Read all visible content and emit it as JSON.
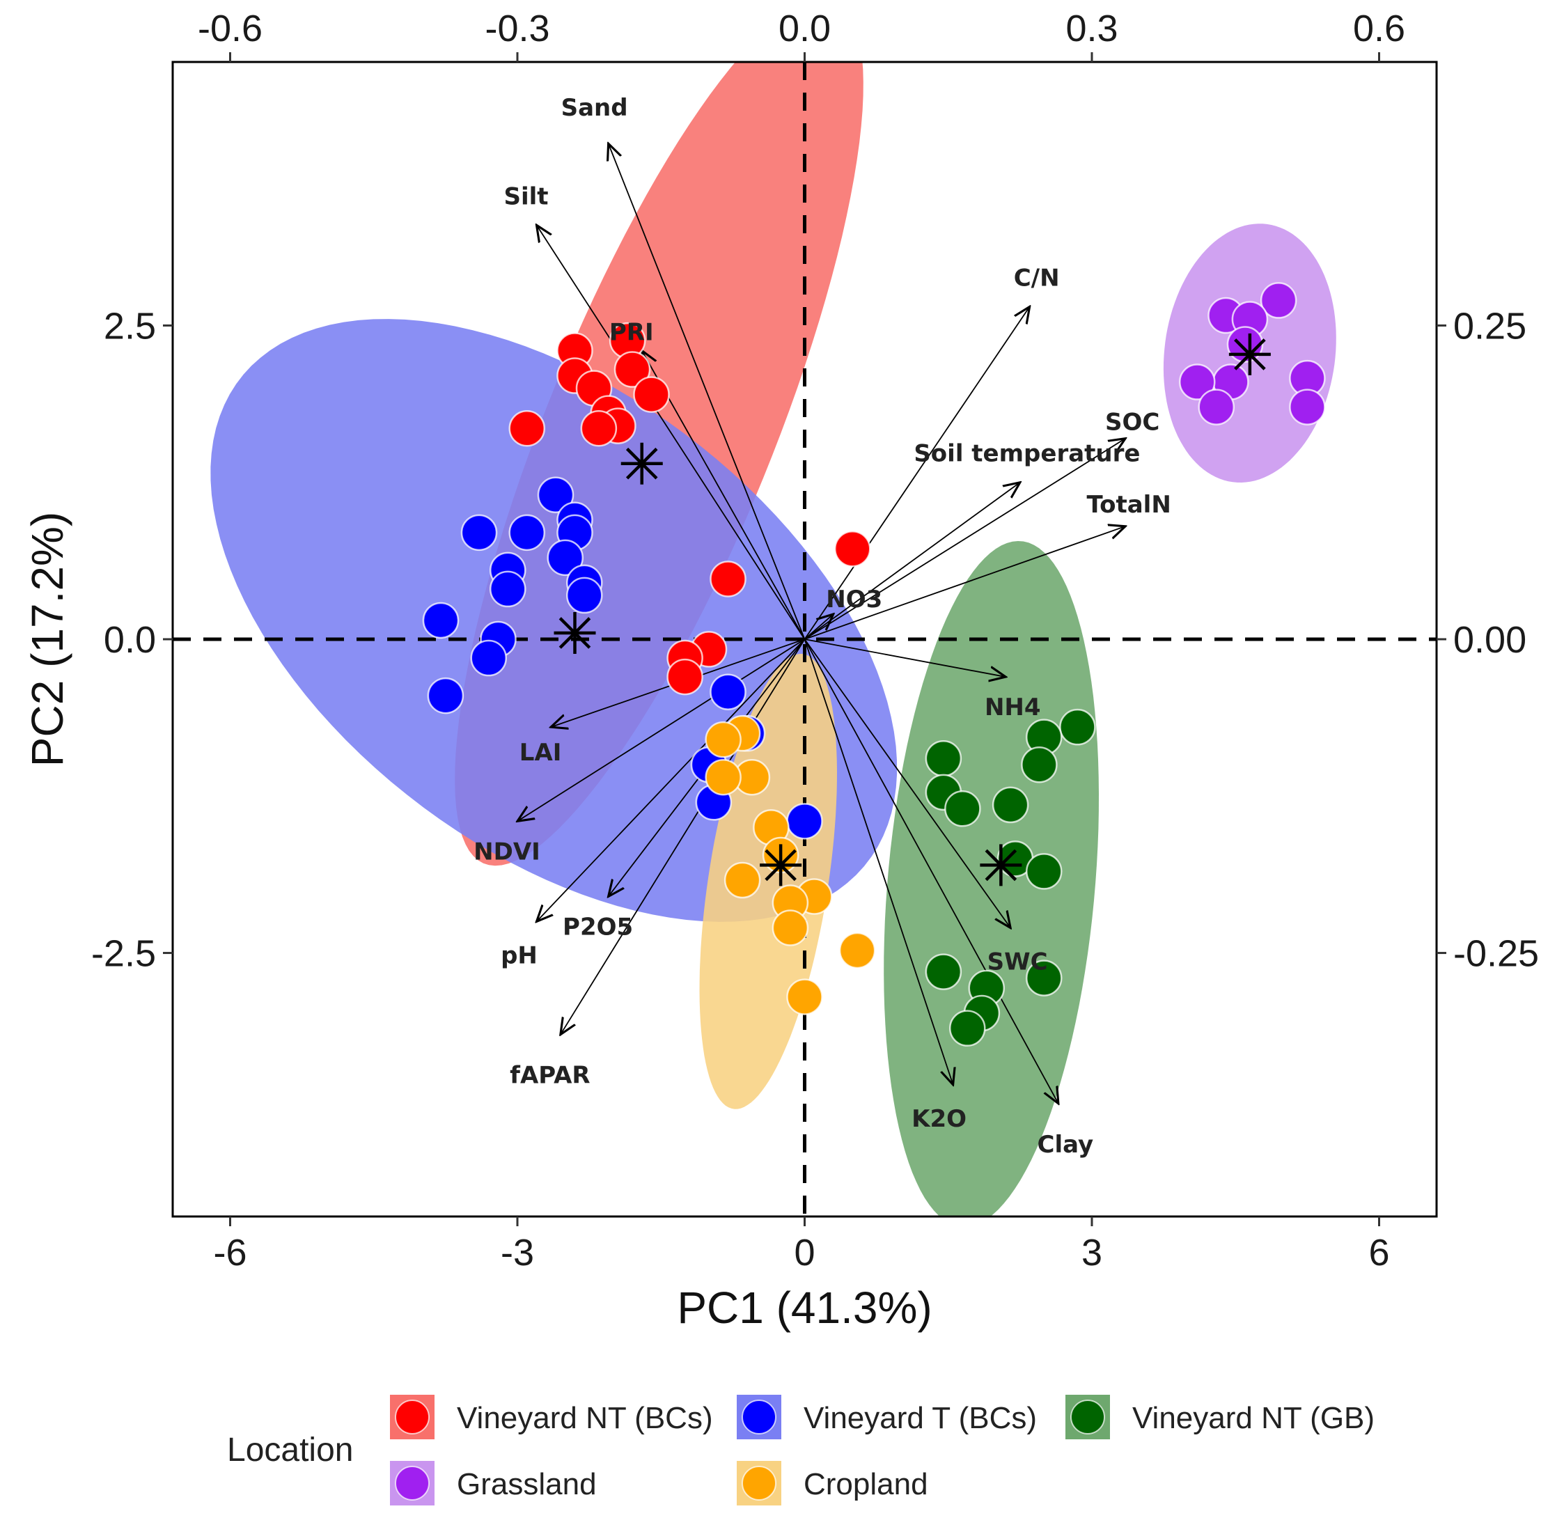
{
  "chart_data": {
    "type": "scatter",
    "subtype": "pca-biplot",
    "xlabel": "PC1 (41.3%)",
    "ylabel": "PC2 (17.2%)",
    "xlim": [
      -6.6,
      6.6
    ],
    "ylim": [
      -4.6,
      4.6
    ],
    "x_ticks": [
      "-6",
      "-3",
      "0",
      "3",
      "6"
    ],
    "x_tick_values": [
      -6,
      -3,
      0,
      3,
      6
    ],
    "y_ticks": [
      "-2.5",
      "0.0",
      "2.5"
    ],
    "y_tick_values": [
      -2.5,
      0,
      2.5
    ],
    "top_ticks": [
      "-0.6",
      "-0.3",
      "0.0",
      "0.3",
      "0.6"
    ],
    "top_tick_values": [
      -0.6,
      -0.3,
      0.0,
      0.3,
      0.6
    ],
    "right_ticks": [
      "0.25",
      "0.00",
      "-0.25"
    ],
    "right_tick_values": [
      0.25,
      0.0,
      -0.25
    ],
    "loading_scale": 10,
    "reference_lines": {
      "x": 0,
      "y": 0,
      "style": "dashed"
    },
    "legend": {
      "title": "Location",
      "placement": "bottom"
    },
    "groups": [
      {
        "name": "Vineyard NT (BCs)",
        "color": "#ff0000",
        "fill": "#f8706b",
        "centroid": [
          -1.7,
          1.4
        ],
        "ellipse": {
          "center": [
            -1.52,
            1.65
          ],
          "a": 3.9,
          "b": 1.13,
          "angle_deg": 61
        },
        "points": [
          [
            -2.4,
            2.3
          ],
          [
            -1.85,
            2.38
          ],
          [
            -2.4,
            2.1
          ],
          [
            -2.2,
            2.0
          ],
          [
            -1.8,
            2.15
          ],
          [
            -1.6,
            1.95
          ],
          [
            -2.05,
            1.8
          ],
          [
            -1.95,
            1.7
          ],
          [
            -2.15,
            1.68
          ],
          [
            -2.9,
            1.68
          ],
          [
            0.5,
            0.72
          ],
          [
            -0.8,
            0.48
          ],
          [
            -1.0,
            -0.08
          ],
          [
            -1.25,
            -0.15
          ],
          [
            -1.25,
            -0.3
          ]
        ]
      },
      {
        "name": "Vineyard T (BCs)",
        "color": "#0000ff",
        "fill": "#7a7ff3",
        "centroid": [
          -2.4,
          0.05
        ],
        "ellipse": {
          "center": [
            -2.62,
            0.15
          ],
          "a": 3.85,
          "b": 1.95,
          "angle_deg": -25
        },
        "points": [
          [
            -2.6,
            1.15
          ],
          [
            -2.4,
            0.95
          ],
          [
            -2.4,
            0.85
          ],
          [
            -3.4,
            0.85
          ],
          [
            -2.9,
            0.85
          ],
          [
            -2.5,
            0.65
          ],
          [
            -3.1,
            0.55
          ],
          [
            -2.3,
            0.45
          ],
          [
            -2.3,
            0.35
          ],
          [
            -3.1,
            0.4
          ],
          [
            -3.8,
            0.15
          ],
          [
            -3.2,
            0.0
          ],
          [
            -3.3,
            -0.15
          ],
          [
            -3.75,
            -0.45
          ],
          [
            -0.8,
            -0.42
          ],
          [
            -0.6,
            -0.75
          ],
          [
            -1.0,
            -1.0
          ],
          [
            -0.95,
            -1.3
          ],
          [
            0.0,
            -1.45
          ]
        ]
      },
      {
        "name": "Vineyard NT (GB)",
        "color": "#006400",
        "fill": "#6ea86e",
        "centroid": [
          2.05,
          -1.8
        ],
        "ellipse": {
          "center": [
            1.95,
            -1.95
          ],
          "a": 2.75,
          "b": 1.08,
          "angle_deg": 83
        },
        "points": [
          [
            2.85,
            -0.7
          ],
          [
            2.5,
            -0.78
          ],
          [
            1.45,
            -0.95
          ],
          [
            2.45,
            -1.0
          ],
          [
            1.45,
            -1.22
          ],
          [
            1.65,
            -1.35
          ],
          [
            2.15,
            -1.32
          ],
          [
            2.2,
            -1.75
          ],
          [
            2.5,
            -1.85
          ],
          [
            1.45,
            -2.65
          ],
          [
            2.5,
            -2.7
          ],
          [
            1.9,
            -2.78
          ],
          [
            1.85,
            -2.98
          ],
          [
            1.7,
            -3.1
          ]
        ]
      },
      {
        "name": "Grassland",
        "color": "#a020f0",
        "fill": "#c995ef",
        "centroid": [
          4.65,
          2.27
        ],
        "ellipse": {
          "center": [
            4.65,
            2.28
          ],
          "a": 1.05,
          "b": 0.88,
          "angle_deg": 70
        },
        "points": [
          [
            4.95,
            2.7
          ],
          [
            4.4,
            2.58
          ],
          [
            4.65,
            2.55
          ],
          [
            4.6,
            2.35
          ],
          [
            4.45,
            2.05
          ],
          [
            4.1,
            2.05
          ],
          [
            5.25,
            2.08
          ],
          [
            4.3,
            1.85
          ],
          [
            5.25,
            1.85
          ]
        ]
      },
      {
        "name": "Cropland",
        "color": "#ffa500",
        "fill": "#f8d282",
        "centroid": [
          -0.25,
          -1.8
        ],
        "ellipse": {
          "center": [
            -0.38,
            -1.93
          ],
          "a": 1.85,
          "b": 0.62,
          "angle_deg": 78
        },
        "points": [
          [
            -0.65,
            -0.75
          ],
          [
            -0.85,
            -0.8
          ],
          [
            -0.55,
            -1.1
          ],
          [
            -0.85,
            -1.1
          ],
          [
            -0.35,
            -1.5
          ],
          [
            -0.25,
            -1.72
          ],
          [
            -0.65,
            -1.92
          ],
          [
            0.1,
            -2.05
          ],
          [
            -0.15,
            -2.1
          ],
          [
            -0.15,
            -2.3
          ],
          [
            0.55,
            -2.48
          ],
          [
            0.0,
            -2.85
          ]
        ]
      }
    ],
    "loadings": [
      {
        "name": "Sand",
        "x": -0.205,
        "y": 0.395
      },
      {
        "name": "Silt",
        "x": -0.28,
        "y": 0.33
      },
      {
        "name": "PRI",
        "x": -0.17,
        "y": 0.23
      },
      {
        "name": "C/N",
        "x": 0.235,
        "y": 0.265
      },
      {
        "name": "SOC",
        "x": 0.335,
        "y": 0.16
      },
      {
        "name": "Soil temperature",
        "x": 0.225,
        "y": 0.125
      },
      {
        "name": "TotalN",
        "x": 0.335,
        "y": 0.09
      },
      {
        "name": "NO3",
        "x": 0.03,
        "y": 0.02
      },
      {
        "name": "NH4",
        "x": 0.21,
        "y": -0.03
      },
      {
        "name": "LAI",
        "x": -0.265,
        "y": -0.07
      },
      {
        "name": "NDVI",
        "x": -0.3,
        "y": -0.145
      },
      {
        "name": "P2O5",
        "x": -0.205,
        "y": -0.205
      },
      {
        "name": "pH",
        "x": -0.28,
        "y": -0.225
      },
      {
        "name": "fAPAR",
        "x": -0.255,
        "y": -0.315
      },
      {
        "name": "SWC",
        "x": 0.215,
        "y": -0.23
      },
      {
        "name": "K2O",
        "x": 0.155,
        "y": -0.355
      },
      {
        "name": "Clay",
        "x": 0.265,
        "y": -0.37
      }
    ]
  }
}
